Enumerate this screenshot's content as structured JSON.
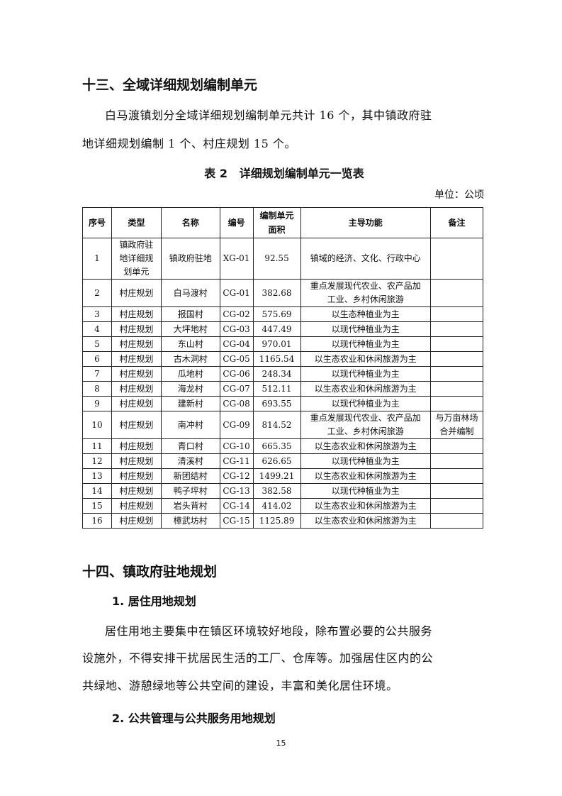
{
  "section13": {
    "title": "十三、全域详细规划编制单元",
    "para": [
      "白马渡镇划分全域详细规划编制单元共计 16 个，其中镇政府驻",
      "地详细规划编制 1 个、村庄规划 15 个。"
    ]
  },
  "table": {
    "caption": "表 2   详细规划编制单元一览表",
    "unit": "单位：公顷",
    "headers": [
      "序号",
      "类型",
      "名称",
      "编号",
      "编制单元面积",
      "主导功能",
      "备注"
    ],
    "rows": [
      [
        "1",
        "镇政府驻地详细规划单元",
        "镇政府驻地",
        "XG-01",
        "92.55",
        "镇域的经济、文化、行政中心",
        ""
      ],
      [
        "2",
        "村庄规划",
        "白马渡村",
        "CG-01",
        "382.68",
        "重点发展现代农业、农产品加工业、乡村休闲旅游",
        ""
      ],
      [
        "3",
        "村庄规划",
        "报国村",
        "CG-02",
        "575.69",
        "以生态种植业为主",
        ""
      ],
      [
        "4",
        "村庄规划",
        "大坪地村",
        "CG-03",
        "447.49",
        "以现代种植业为主",
        ""
      ],
      [
        "5",
        "村庄规划",
        "东山村",
        "CG-04",
        "970.01",
        "以现代种植业为主",
        ""
      ],
      [
        "6",
        "村庄规划",
        "古木洞村",
        "CG-05",
        "1165.54",
        "以生态农业和休闲旅游为主",
        ""
      ],
      [
        "7",
        "村庄规划",
        "瓜地村",
        "CG-06",
        "248.34",
        "以现代种植业为主",
        ""
      ],
      [
        "8",
        "村庄规划",
        "海龙村",
        "CG-07",
        "512.11",
        "以生态农业和休闲旅游为主",
        ""
      ],
      [
        "9",
        "村庄规划",
        "建新村",
        "CG-08",
        "693.55",
        "以现代种植业为主",
        ""
      ],
      [
        "10",
        "村庄规划",
        "南冲村",
        "CG-09",
        "814.52",
        "重点发展现代农业、农产品加工业、乡村休闲旅游",
        "与万亩林场合并编制"
      ],
      [
        "11",
        "村庄规划",
        "青口村",
        "CG-10",
        "665.35",
        "以生态农业和休闲旅游为主",
        ""
      ],
      [
        "12",
        "村庄规划",
        "清溪村",
        "CG-11",
        "626.65",
        "以现代种植业为主",
        ""
      ],
      [
        "13",
        "村庄规划",
        "新团结村",
        "CG-12",
        "1499.21",
        "以生态农业和休闲旅游为主",
        ""
      ],
      [
        "14",
        "村庄规划",
        "鸭子坪村",
        "CG-13",
        "382.58",
        "以现代种植业为主",
        ""
      ],
      [
        "15",
        "村庄规划",
        "岩头背村",
        "CG-14",
        "414.02",
        "以生态农业和休闲旅游为主",
        ""
      ],
      [
        "16",
        "村庄规划",
        "樟武坊村",
        "CG-15",
        "1125.89",
        "以生态农业和休闲旅游为主",
        ""
      ]
    ]
  },
  "section14": {
    "title": "十四、镇政府驻地规划",
    "sub1": "1. 居住用地规划",
    "para": [
      "居住用地主要集中在镇区环境较好地段，除布置必要的公共服务",
      "设施外，不得安排干扰居民生活的工厂、仓库等。加强居住区内的公",
      "共绿地、游憩绿地等公共空间的建设，丰富和美化居住环境。"
    ],
    "sub2": "2. 公共管理与公共服务用地规划"
  },
  "page_number": "15"
}
